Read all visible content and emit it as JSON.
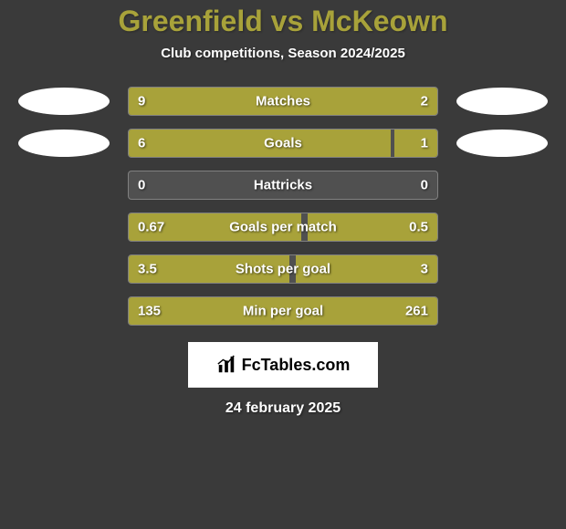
{
  "title": "Greenfield vs McKeown",
  "subtitle": "Club competitions, Season 2024/2025",
  "colors": {
    "background": "#3a3a3a",
    "bar_fill": "#a8a23a",
    "bar_empty": "#505050",
    "bar_border": "#808080",
    "title_color": "#a8a23a",
    "text_color": "#ffffff",
    "avatar_bg": "#ffffff",
    "logo_bg": "#ffffff"
  },
  "stats": [
    {
      "label": "Matches",
      "left_value": "9",
      "right_value": "2",
      "left_pct": 78,
      "right_pct": 22,
      "show_avatars": true
    },
    {
      "label": "Goals",
      "left_value": "6",
      "right_value": "1",
      "left_pct": 85,
      "right_pct": 14,
      "show_avatars": true
    },
    {
      "label": "Hattricks",
      "left_value": "0",
      "right_value": "0",
      "left_pct": 0,
      "right_pct": 0,
      "show_avatars": false
    },
    {
      "label": "Goals per match",
      "left_value": "0.67",
      "right_value": "0.5",
      "left_pct": 56,
      "right_pct": 42,
      "show_avatars": false
    },
    {
      "label": "Shots per goal",
      "left_value": "3.5",
      "right_value": "3",
      "left_pct": 52,
      "right_pct": 46,
      "show_avatars": false
    },
    {
      "label": "Min per goal",
      "left_value": "135",
      "right_value": "261",
      "left_pct": 34,
      "right_pct": 66,
      "show_avatars": false
    }
  ],
  "logo_text": "FcTables.com",
  "date": "24 february 2025"
}
